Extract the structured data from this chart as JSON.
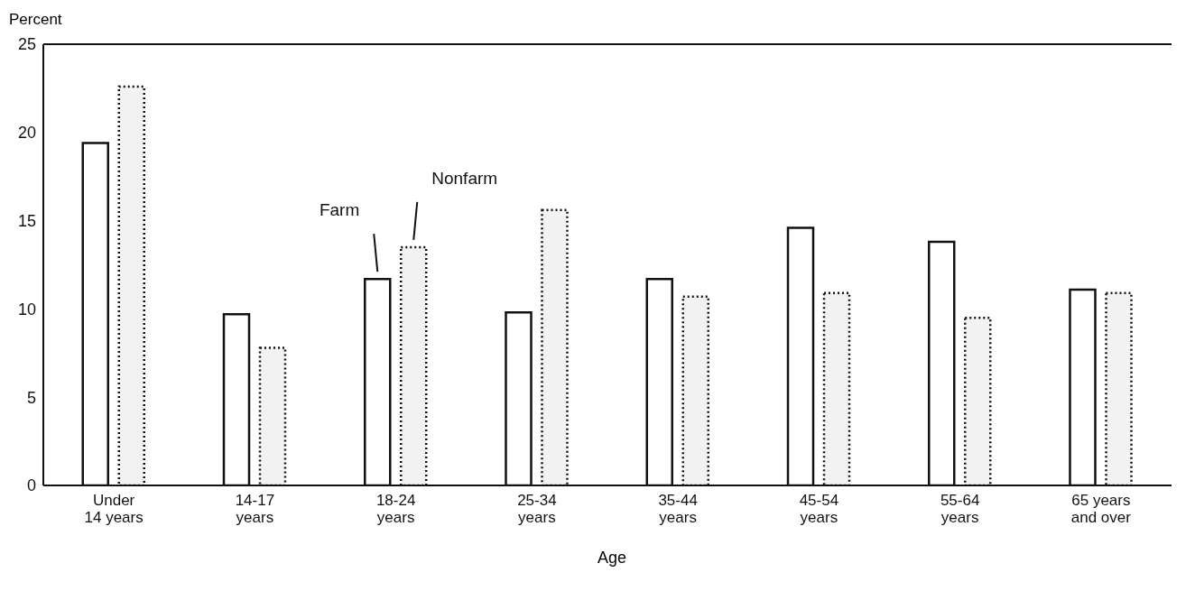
{
  "chart_data": {
    "type": "bar",
    "ylabel": "Percent",
    "xlabel": "Age",
    "categories": [
      "Under\n14 years",
      "14-17\nyears",
      "18-24\nyears",
      "25-34\nyears",
      "35-44\nyears",
      "45-54\nyears",
      "55-64\nyears",
      "65 years\nand over"
    ],
    "series": [
      {
        "name": "Farm",
        "color": "#ffffff",
        "values": [
          19.4,
          9.7,
          11.7,
          9.8,
          11.7,
          14.6,
          13.8,
          11.1
        ]
      },
      {
        "name": "Nonfarm",
        "color": "#f2f2f2",
        "line_style": "dotted",
        "values": [
          22.6,
          7.8,
          13.5,
          15.6,
          10.7,
          10.9,
          9.5,
          10.9
        ]
      }
    ],
    "ylim": [
      0,
      25
    ],
    "yticks": [
      0,
      5,
      10,
      15,
      20,
      25
    ]
  }
}
